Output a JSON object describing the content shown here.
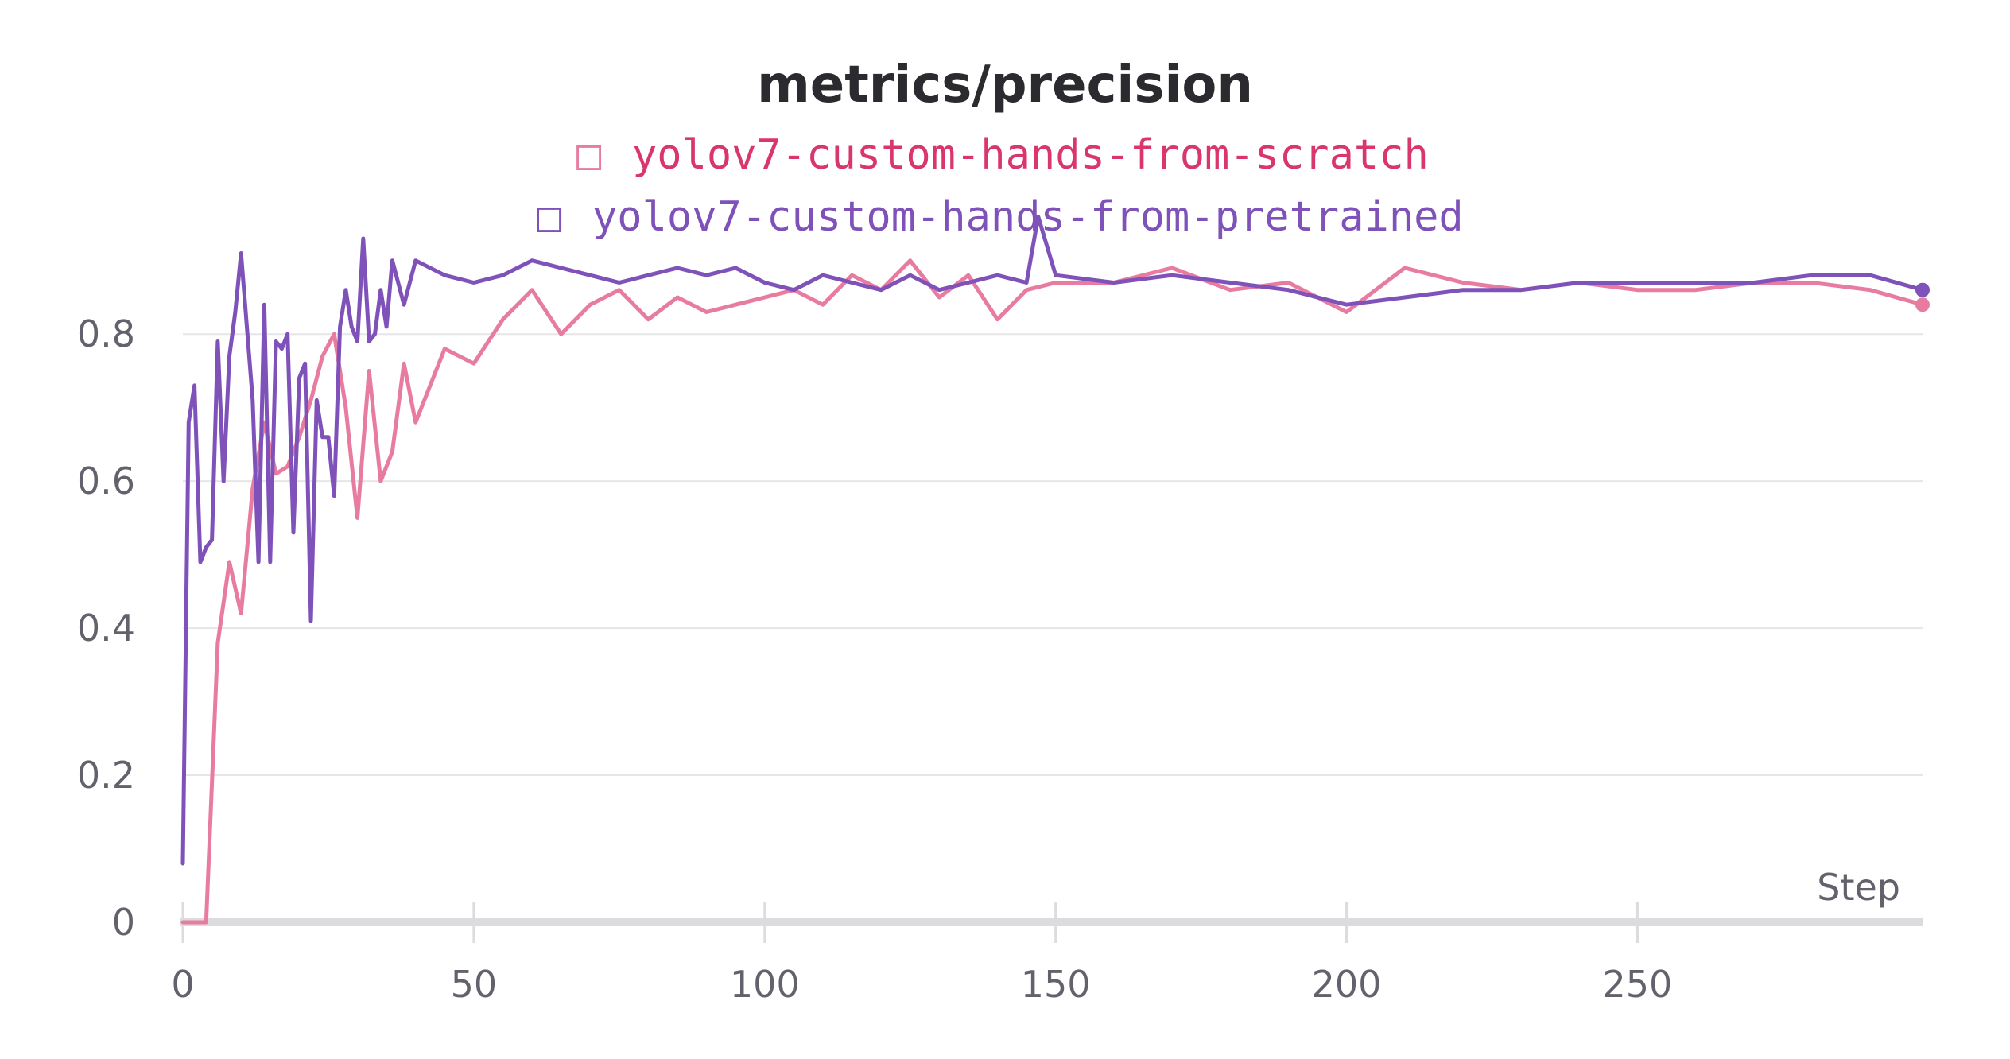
{
  "chart_data": {
    "type": "line",
    "title": "metrics/precision",
    "xlabel": "Step",
    "ylabel": "",
    "xlim": [
      0,
      299
    ],
    "ylim": [
      0,
      0.93
    ],
    "x_ticks": [
      0,
      50,
      100,
      150,
      200,
      250
    ],
    "y_ticks": [
      0,
      0.2,
      0.4,
      0.6,
      0.8
    ],
    "x_tick_labels": [
      "0",
      "50",
      "100",
      "150",
      "200",
      "250"
    ],
    "y_tick_labels": [
      "0",
      "0.2",
      "0.4",
      "0.6",
      "0.8"
    ],
    "grid": true,
    "legend": "top-center",
    "legend_marker": "□",
    "series": [
      {
        "name": "yolov7-custom-hands-from-scratch",
        "color": "#e87ca0",
        "label_color": "#d9366e",
        "x": [
          0,
          2,
          4,
          6,
          8,
          10,
          12,
          14,
          16,
          18,
          20,
          22,
          24,
          26,
          28,
          30,
          32,
          34,
          36,
          38,
          40,
          45,
          50,
          55,
          60,
          65,
          70,
          75,
          80,
          85,
          90,
          95,
          100,
          105,
          110,
          115,
          120,
          125,
          130,
          135,
          140,
          145,
          150,
          160,
          170,
          180,
          190,
          200,
          210,
          220,
          230,
          240,
          250,
          260,
          270,
          280,
          290,
          299
        ],
        "y": [
          0.0,
          0.0,
          0.0,
          0.38,
          0.49,
          0.42,
          0.59,
          0.68,
          0.61,
          0.62,
          0.66,
          0.71,
          0.77,
          0.8,
          0.7,
          0.55,
          0.75,
          0.6,
          0.64,
          0.76,
          0.68,
          0.78,
          0.76,
          0.82,
          0.86,
          0.8,
          0.84,
          0.86,
          0.82,
          0.85,
          0.83,
          0.84,
          0.85,
          0.86,
          0.84,
          0.88,
          0.86,
          0.9,
          0.85,
          0.88,
          0.82,
          0.86,
          0.87,
          0.87,
          0.89,
          0.86,
          0.87,
          0.83,
          0.89,
          0.87,
          0.86,
          0.87,
          0.86,
          0.86,
          0.87,
          0.87,
          0.86,
          0.84
        ]
      },
      {
        "name": "yolov7-custom-hands-from-pretrained",
        "color": "#7e52b9",
        "label_color": "#7e52b9",
        "x": [
          0,
          1,
          2,
          3,
          4,
          5,
          6,
          7,
          8,
          9,
          10,
          11,
          12,
          13,
          14,
          15,
          16,
          17,
          18,
          19,
          20,
          21,
          22,
          23,
          24,
          25,
          26,
          27,
          28,
          29,
          30,
          31,
          32,
          33,
          34,
          35,
          36,
          38,
          40,
          45,
          50,
          55,
          60,
          65,
          70,
          75,
          80,
          85,
          90,
          95,
          100,
          105,
          110,
          115,
          120,
          125,
          130,
          135,
          140,
          145,
          147,
          150,
          160,
          170,
          180,
          190,
          200,
          210,
          220,
          230,
          240,
          250,
          260,
          270,
          280,
          290,
          299
        ],
        "y": [
          0.08,
          0.68,
          0.73,
          0.49,
          0.51,
          0.52,
          0.79,
          0.6,
          0.77,
          0.83,
          0.91,
          0.81,
          0.71,
          0.49,
          0.84,
          0.49,
          0.79,
          0.78,
          0.8,
          0.53,
          0.74,
          0.76,
          0.41,
          0.71,
          0.66,
          0.66,
          0.58,
          0.81,
          0.86,
          0.81,
          0.79,
          0.93,
          0.79,
          0.8,
          0.86,
          0.81,
          0.9,
          0.84,
          0.9,
          0.88,
          0.87,
          0.88,
          0.9,
          0.89,
          0.88,
          0.87,
          0.88,
          0.89,
          0.88,
          0.89,
          0.87,
          0.86,
          0.88,
          0.87,
          0.86,
          0.88,
          0.86,
          0.87,
          0.88,
          0.87,
          0.96,
          0.88,
          0.87,
          0.88,
          0.87,
          0.86,
          0.84,
          0.85,
          0.86,
          0.86,
          0.87,
          0.87,
          0.87,
          0.87,
          0.88,
          0.88,
          0.86
        ]
      }
    ]
  }
}
